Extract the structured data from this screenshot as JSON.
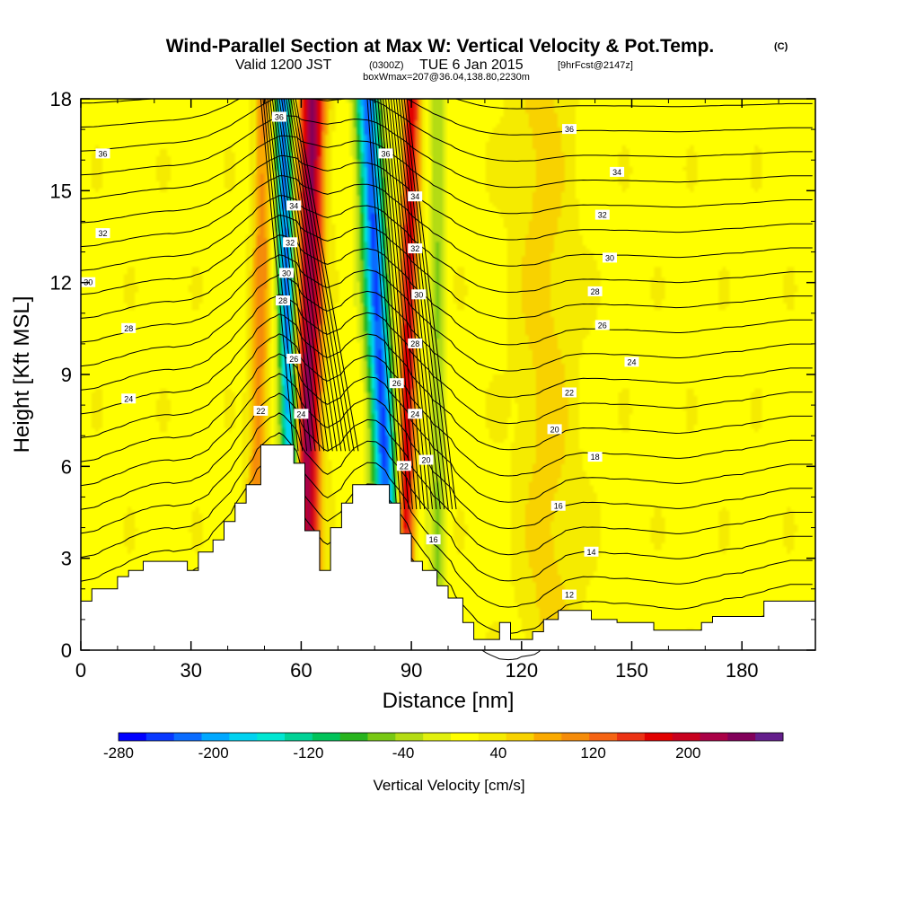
{
  "title": {
    "main": "Wind-Parallel Section at Max W: Vertical Velocity & Pot.Temp.",
    "copyright": "(C)",
    "valid_prefix": "Valid 1200 JST",
    "valid_utc": "(0300Z)",
    "valid_date": "TUE 6 Jan 2015",
    "forecast": "[9hrFcst@2147z]",
    "box": "boxWmax=207@36.04,138.80,2230m"
  },
  "colorbar": {
    "label": "Vertical Velocity [cm/s]",
    "tick_labels": [
      "-280",
      "-200",
      "-120",
      "-40",
      "40",
      "120",
      "200"
    ],
    "colors": [
      "#0000ff",
      "#0838ff",
      "#0a6cff",
      "#00a8ff",
      "#00d2f0",
      "#00e6d2",
      "#00d296",
      "#00c35a",
      "#28b41e",
      "#78c814",
      "#b4dc14",
      "#e1f00f",
      "#ffff00",
      "#f5eb00",
      "#f8d200",
      "#faaa00",
      "#f58c0a",
      "#f56414",
      "#eb3214",
      "#e10000",
      "#c8001e",
      "#aa0046",
      "#82005a",
      "#641e8c"
    ]
  },
  "chart_data": {
    "type": "heatmap",
    "xlabel": "Distance [nm]",
    "ylabel": "Height [Kft MSL]",
    "xlim": [
      0,
      200
    ],
    "ylim": [
      0,
      18
    ],
    "xticks": [
      0,
      30,
      60,
      90,
      120,
      150,
      180
    ],
    "yticks": [
      0,
      3,
      6,
      9,
      12,
      15,
      18
    ],
    "fill_variable": "Vertical Velocity [cm/s]",
    "fill_range": [
      -280,
      280
    ],
    "contour_variable": "Potential Temperature",
    "contour_levels": [
      12,
      14,
      16,
      18,
      20,
      22,
      24,
      26,
      28,
      30,
      32,
      34,
      36
    ],
    "max_w": 207,
    "terrain": [
      [
        0,
        1.6
      ],
      [
        3,
        1.6
      ],
      [
        3,
        2.0
      ],
      [
        10,
        2.0
      ],
      [
        10,
        2.4
      ],
      [
        13,
        2.4
      ],
      [
        13,
        2.6
      ],
      [
        17,
        2.6
      ],
      [
        17,
        2.9
      ],
      [
        29,
        2.9
      ],
      [
        29,
        2.6
      ],
      [
        32,
        2.6
      ],
      [
        32,
        3.2
      ],
      [
        36,
        3.2
      ],
      [
        36,
        3.6
      ],
      [
        39,
        3.6
      ],
      [
        39,
        4.2
      ],
      [
        42,
        4.2
      ],
      [
        42,
        4.8
      ],
      [
        45,
        4.8
      ],
      [
        45,
        5.4
      ],
      [
        49,
        5.4
      ],
      [
        49,
        6.7
      ],
      [
        58,
        6.7
      ],
      [
        58,
        6.1
      ],
      [
        61,
        6.1
      ],
      [
        61,
        3.9
      ],
      [
        65,
        3.9
      ],
      [
        65,
        2.6
      ],
      [
        68,
        2.6
      ],
      [
        68,
        4.0
      ],
      [
        71,
        4.0
      ],
      [
        71,
        4.8
      ],
      [
        74,
        4.8
      ],
      [
        74,
        5.4
      ],
      [
        84,
        5.4
      ],
      [
        84,
        4.8
      ],
      [
        87,
        4.8
      ],
      [
        87,
        3.8
      ],
      [
        90,
        3.8
      ],
      [
        90,
        2.9
      ],
      [
        93,
        2.9
      ],
      [
        93,
        2.6
      ],
      [
        97,
        2.6
      ],
      [
        97,
        2.1
      ],
      [
        100,
        2.1
      ],
      [
        100,
        1.7
      ],
      [
        104,
        1.7
      ],
      [
        104,
        0.9
      ],
      [
        107,
        0.9
      ],
      [
        107,
        0.35
      ],
      [
        114,
        0.35
      ],
      [
        114,
        0.9
      ],
      [
        117,
        0.9
      ],
      [
        117,
        0.35
      ],
      [
        123,
        0.35
      ],
      [
        123,
        0.6
      ],
      [
        126,
        0.6
      ],
      [
        126,
        1.0
      ],
      [
        130,
        1.0
      ],
      [
        130,
        1.3
      ],
      [
        139,
        1.3
      ],
      [
        139,
        1.0
      ],
      [
        146,
        1.0
      ],
      [
        146,
        0.9
      ],
      [
        156,
        0.9
      ],
      [
        156,
        0.65
      ],
      [
        169,
        0.65
      ],
      [
        169,
        0.9
      ],
      [
        172,
        0.9
      ],
      [
        172,
        1.1
      ],
      [
        186,
        1.1
      ],
      [
        186,
        1.6
      ],
      [
        200,
        1.6
      ]
    ],
    "updraft_bands": [
      {
        "x_bottom": 61,
        "x_top": 63,
        "w_peak": 220,
        "half_width": 3.5
      },
      {
        "x_bottom": 88,
        "x_top": 90,
        "w_peak": 170,
        "half_width": 2.3
      }
    ],
    "downdraft_bands": [
      {
        "x_bottom": 58,
        "x_top": 55,
        "w_peak": -240,
        "half_width": 2.3
      },
      {
        "x_bottom": 85,
        "x_top": 78,
        "w_peak": -250,
        "half_width": 3.2
      }
    ],
    "weak_bands": [
      {
        "x_bottom": 47,
        "x_top": 50,
        "w_peak": 90,
        "half_width": 2.5
      },
      {
        "x_bottom": 97,
        "x_top": 97,
        "w_peak": -60,
        "half_width": 2.0
      },
      {
        "x_bottom": 128,
        "x_top": 125,
        "w_peak": 40,
        "half_width": 8
      }
    ],
    "contour_labels": [
      {
        "text": "36",
        "x": 6,
        "y": 16.2
      },
      {
        "text": "32",
        "x": 6,
        "y": 13.6
      },
      {
        "text": "30",
        "x": 2,
        "y": 12.0
      },
      {
        "text": "28",
        "x": 13,
        "y": 10.5
      },
      {
        "text": "24",
        "x": 13,
        "y": 8.2
      },
      {
        "text": "22",
        "x": 49,
        "y": 7.8
      },
      {
        "text": "36",
        "x": 54,
        "y": 17.4
      },
      {
        "text": "34",
        "x": 58,
        "y": 14.5
      },
      {
        "text": "32",
        "x": 57,
        "y": 13.3
      },
      {
        "text": "30",
        "x": 56,
        "y": 12.3
      },
      {
        "text": "28",
        "x": 55,
        "y": 11.4
      },
      {
        "text": "26",
        "x": 58,
        "y": 9.5
      },
      {
        "text": "24",
        "x": 60,
        "y": 7.7
      },
      {
        "text": "36",
        "x": 83,
        "y": 16.2
      },
      {
        "text": "34",
        "x": 91,
        "y": 14.8
      },
      {
        "text": "32",
        "x": 91,
        "y": 13.1
      },
      {
        "text": "30",
        "x": 92,
        "y": 11.6
      },
      {
        "text": "28",
        "x": 91,
        "y": 10.0
      },
      {
        "text": "26",
        "x": 86,
        "y": 8.7
      },
      {
        "text": "24",
        "x": 91,
        "y": 7.7
      },
      {
        "text": "22",
        "x": 88,
        "y": 6.0
      },
      {
        "text": "20",
        "x": 94,
        "y": 6.2
      },
      {
        "text": "16",
        "x": 96,
        "y": 3.6
      },
      {
        "text": "36",
        "x": 133,
        "y": 17.0
      },
      {
        "text": "34",
        "x": 146,
        "y": 15.6
      },
      {
        "text": "32",
        "x": 142,
        "y": 14.2
      },
      {
        "text": "30",
        "x": 144,
        "y": 12.8
      },
      {
        "text": "28",
        "x": 140,
        "y": 11.7
      },
      {
        "text": "26",
        "x": 142,
        "y": 10.6
      },
      {
        "text": "24",
        "x": 150,
        "y": 9.4
      },
      {
        "text": "22",
        "x": 133,
        "y": 8.4
      },
      {
        "text": "20",
        "x": 129,
        "y": 7.2
      },
      {
        "text": "18",
        "x": 140,
        "y": 6.3
      },
      {
        "text": "16",
        "x": 130,
        "y": 4.7
      },
      {
        "text": "14",
        "x": 139,
        "y": 3.2
      },
      {
        "text": "12",
        "x": 133,
        "y": 1.8
      }
    ]
  }
}
